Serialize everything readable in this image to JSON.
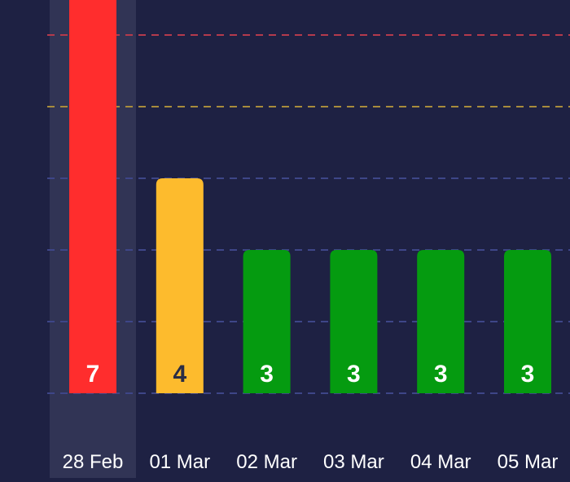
{
  "chart_data": {
    "type": "bar",
    "categories": [
      "28 Feb",
      "01 Mar",
      "02 Mar",
      "03 Mar",
      "04 Mar",
      "05 Mar"
    ],
    "values": [
      7,
      4,
      3,
      3,
      3,
      3
    ],
    "value_labels": [
      "7",
      "4",
      "3",
      "3",
      "3",
      "3"
    ],
    "ylim": [
      1,
      7
    ],
    "highlighted_category": "28 Feb",
    "grid": true,
    "bar_colors": [
      "#ff2d2d",
      "#fdbb2d",
      "#059b10",
      "#059b10",
      "#059b10",
      "#059b10"
    ],
    "label_colors": [
      "#ffffff",
      "#2a2d45",
      "#ffffff",
      "#ffffff",
      "#ffffff",
      "#ffffff"
    ],
    "gridlines": [
      {
        "value": 7,
        "color": "#b43a4c"
      },
      {
        "value": 6,
        "color": "#b43a4c"
      },
      {
        "value": 5,
        "color": "#a88c3c"
      },
      {
        "value": 4,
        "color": "#3e4688"
      },
      {
        "value": 3,
        "color": "#3e4688"
      },
      {
        "value": 2,
        "color": "#3e4688"
      }
    ]
  },
  "colors": {
    "background": "#1e2143",
    "highlight_band": "#313455",
    "tick_label": "#ffffff"
  }
}
